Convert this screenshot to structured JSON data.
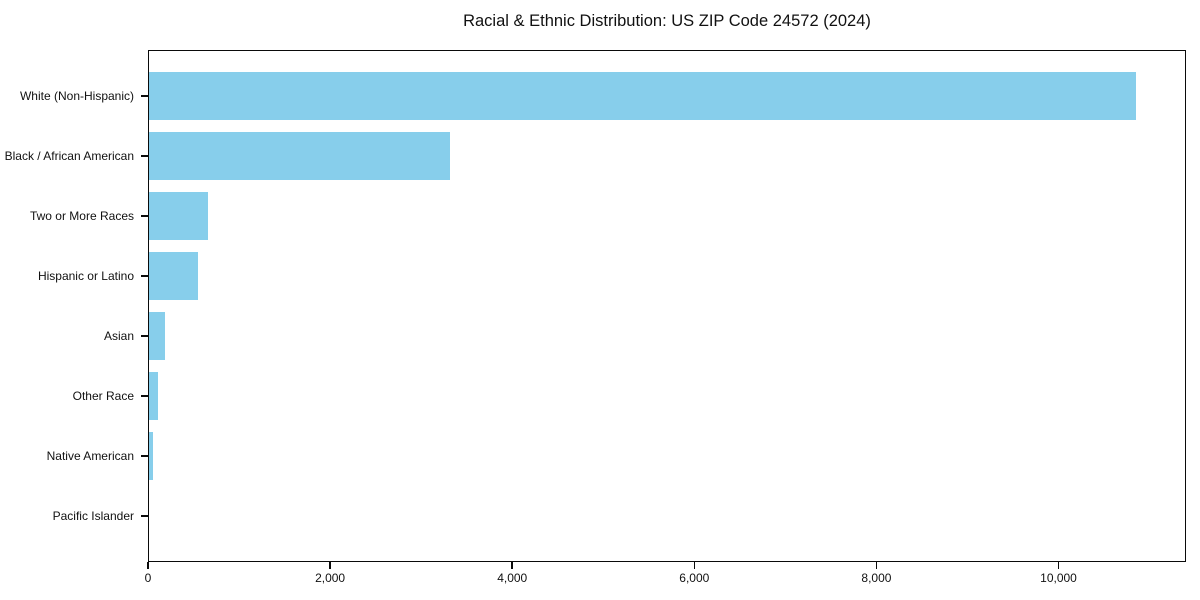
{
  "title": "Racial & Ethnic Distribution: US ZIP Code 24572 (2024)",
  "chart_data": {
    "type": "bar",
    "orientation": "horizontal",
    "title": "Racial & Ethnic Distribution: US ZIP Code 24572 (2024)",
    "categories": [
      "White (Non-Hispanic)",
      "Black / African American",
      "Two or More Races",
      "Hispanic or Latino",
      "Asian",
      "Other Race",
      "Native American",
      "Pacific Islander"
    ],
    "values": [
      10850,
      3320,
      660,
      550,
      185,
      110,
      60,
      8
    ],
    "xlabel": "",
    "ylabel": "",
    "xlim": [
      0,
      11400
    ],
    "x_ticks": [
      0,
      2000,
      4000,
      6000,
      8000,
      10000
    ],
    "x_tick_labels": [
      "0",
      "2,000",
      "4,000",
      "6,000",
      "8,000",
      "10,000"
    ],
    "bar_color": "#87CEEB",
    "spine_color": "#0a0a0a",
    "grid": false,
    "legend": null
  }
}
